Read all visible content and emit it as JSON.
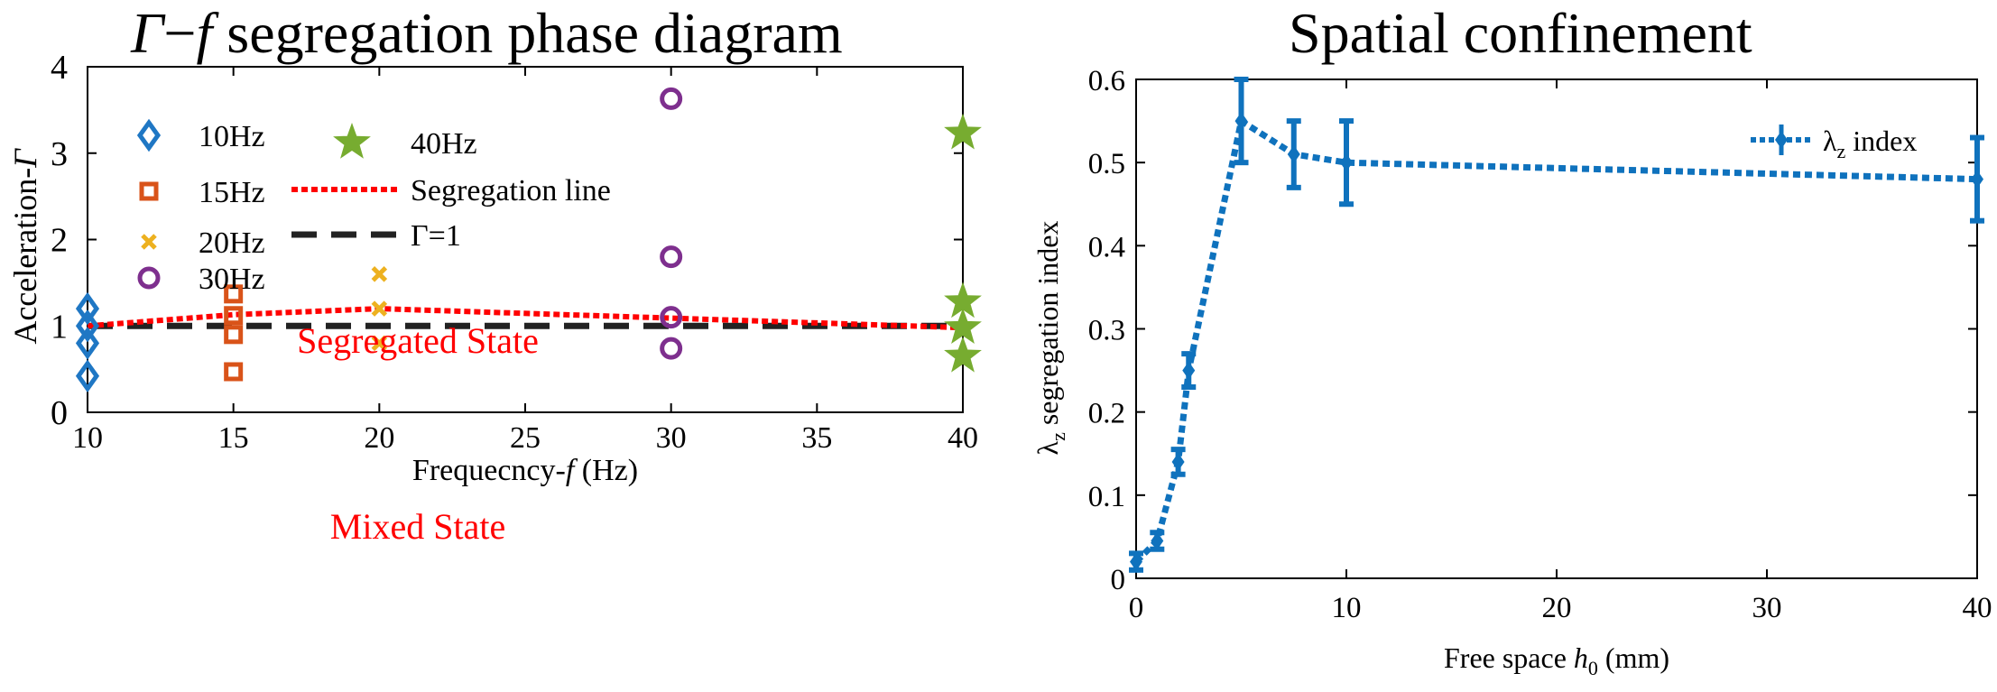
{
  "chart_data": [
    {
      "type": "scatter",
      "title_parts": {
        "gamma": "Γ",
        "dash": "−",
        "f": "f",
        "rest": " segregation phase diagram"
      },
      "xlabel_parts": {
        "pre": "Frequecncy-",
        "italic": "f",
        "post": " (Hz)"
      },
      "ylabel_parts": {
        "pre": "Acceleration-",
        "italic": "Γ"
      },
      "xlim": [
        10,
        40
      ],
      "ylim": [
        0,
        4
      ],
      "xticks": [
        "10",
        "15",
        "20",
        "25",
        "30",
        "35",
        "40"
      ],
      "yticks": [
        "0",
        "1",
        "2",
        "3",
        "4"
      ],
      "grid": false,
      "legend_placement": "top-left",
      "series": [
        {
          "name": "10Hz",
          "marker": "diamond",
          "color": "#1f77c4",
          "points": [
            [
              10,
              1.2
            ],
            [
              10,
              1.0
            ],
            [
              10,
              0.8
            ],
            [
              10,
              0.42
            ]
          ]
        },
        {
          "name": "15Hz",
          "marker": "square",
          "color": "#d95319",
          "points": [
            [
              15,
              1.37
            ],
            [
              15,
              1.12
            ],
            [
              15,
              0.9
            ],
            [
              15,
              0.47
            ]
          ]
        },
        {
          "name": "20Hz",
          "marker": "x",
          "color": "#edb120",
          "points": [
            [
              20,
              1.6
            ],
            [
              20,
              1.2
            ],
            [
              20,
              0.8
            ]
          ]
        },
        {
          "name": "30Hz",
          "marker": "circle",
          "color": "#7e2f8e",
          "points": [
            [
              30,
              3.63
            ],
            [
              30,
              1.8
            ],
            [
              30,
              1.1
            ],
            [
              30,
              0.74
            ]
          ]
        },
        {
          "name": "40Hz",
          "marker": "star",
          "color": "#77ac30",
          "points": [
            [
              40,
              3.23
            ],
            [
              40,
              1.28
            ],
            [
              40,
              0.98
            ],
            [
              40,
              0.65
            ]
          ]
        }
      ],
      "segregation_line": {
        "name": "Segregation line",
        "color": "#ff0000",
        "x": [
          10,
          15,
          20,
          30,
          40
        ],
        "y": [
          1.0,
          1.13,
          1.2,
          1.09,
          0.98
        ]
      },
      "gamma_line": {
        "name": "Γ=1",
        "color": "#222222",
        "y": 1
      },
      "annotations": {
        "segregated": "Segregated State",
        "mixed": "Mixed State"
      }
    },
    {
      "type": "line",
      "title": "Spatial confinement",
      "xlabel_parts": {
        "pre": "Free space ",
        "italic": "h",
        "sub": "0",
        "post": " (mm)"
      },
      "ylabel_parts": {
        "lambda": "λ",
        "sub": "z",
        "post": " segregation index"
      },
      "xlim": [
        0,
        40
      ],
      "ylim": [
        0,
        0.6
      ],
      "xticks": [
        "0",
        "10",
        "20",
        "30",
        "40"
      ],
      "yticks": [
        "0",
        "0.1",
        "0.2",
        "0.3",
        "0.4",
        "0.5",
        "0.6"
      ],
      "grid": false,
      "legend_placement": "top-right",
      "series": [
        {
          "name_parts": {
            "lambda": "λ",
            "sub": "z",
            "post": " index"
          },
          "color": "#0f72bd",
          "x": [
            0,
            1,
            2,
            2.5,
            5,
            7.5,
            10,
            40
          ],
          "y": [
            0.02,
            0.045,
            0.14,
            0.25,
            0.55,
            0.51,
            0.5,
            0.48
          ],
          "err": [
            0.01,
            0.01,
            0.015,
            0.02,
            0.05,
            0.04,
            0.05,
            0.05
          ]
        }
      ]
    }
  ]
}
